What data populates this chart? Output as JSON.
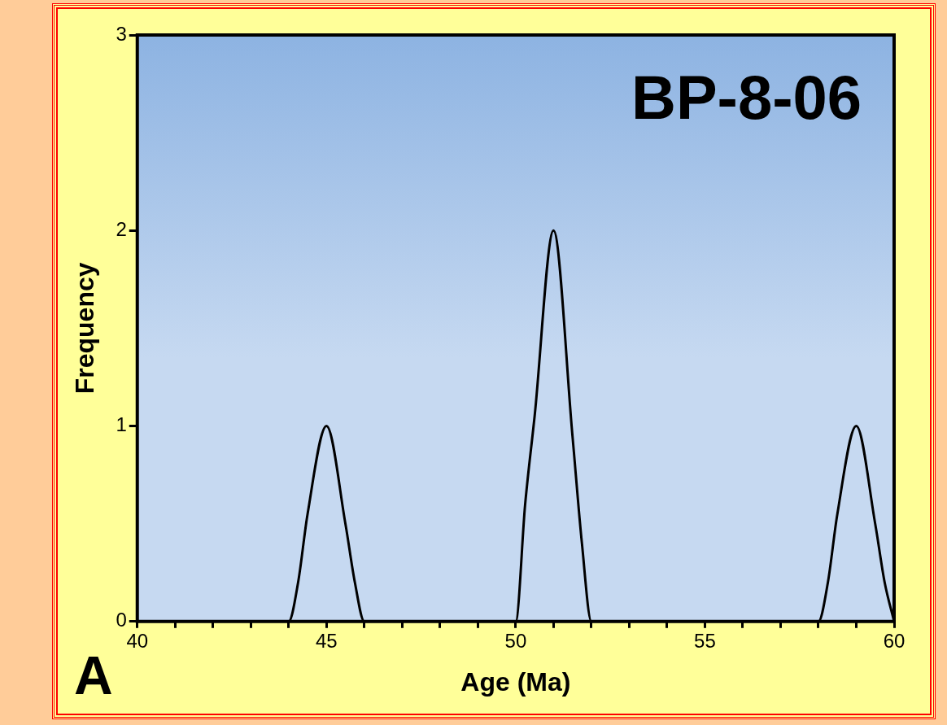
{
  "chart_data": {
    "type": "line",
    "title": "BP-8-06",
    "xlabel": "Age (Ma)",
    "ylabel": "Frequency",
    "annotations": [
      "A"
    ],
    "x": [
      40,
      44,
      44.25,
      44.5,
      45,
      45.5,
      45.75,
      46,
      50,
      50.25,
      50.5,
      51,
      51.5,
      51.75,
      52,
      58,
      58.25,
      58.5,
      59,
      59.5,
      59.75,
      60
    ],
    "series": [
      {
        "color": "#000000",
        "values": [
          0,
          0,
          0.2,
          0.55,
          1,
          0.5,
          0.2,
          0,
          0,
          0.6,
          1.05,
          2,
          0.95,
          0.4,
          0,
          0,
          0.2,
          0.55,
          1,
          0.5,
          0.2,
          0
        ]
      }
    ],
    "xlim": [
      40,
      60
    ],
    "xticks": [
      40,
      {
        "value": 41,
        "label": null
      },
      {
        "value": 42,
        "label": null
      },
      {
        "value": 43,
        "label": null
      },
      {
        "value": 44,
        "label": null
      },
      45,
      {
        "value": 46,
        "label": null
      },
      {
        "value": 47,
        "label": null
      },
      {
        "value": 48,
        "label": null
      },
      {
        "value": 49,
        "label": null
      },
      50,
      {
        "value": 51,
        "label": null
      },
      {
        "value": 52,
        "label": null
      },
      {
        "value": 53,
        "label": null
      },
      {
        "value": 54,
        "label": null
      },
      55,
      {
        "value": 56,
        "label": null
      },
      {
        "value": 57,
        "label": null
      },
      {
        "value": 58,
        "label": null
      },
      {
        "value": 59,
        "label": null
      },
      60
    ],
    "ylim": [
      0,
      3
    ],
    "yticks": [
      0,
      1,
      2,
      3
    ],
    "grid": false,
    "legend": false,
    "marker": "none",
    "line_style": "solid"
  }
}
